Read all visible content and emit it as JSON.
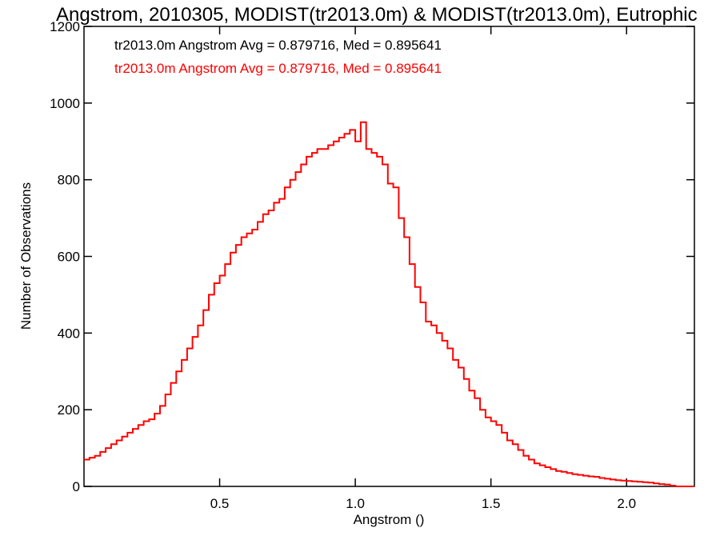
{
  "chart_data": {
    "type": "step",
    "title": "Angstrom, 2010305, MODIST(tr2013.0m) & MODIST(tr2013.0m), Eutrophic",
    "xlabel": "Angstrom ()",
    "ylabel": "Number of Observations",
    "xlim": [
      0.0,
      2.25
    ],
    "ylim": [
      0,
      1200
    ],
    "xticks": [
      "0.5",
      "1.0",
      "1.5",
      "2.0"
    ],
    "yticks": [
      "0",
      "200",
      "400",
      "600",
      "800",
      "1000",
      "1200"
    ],
    "annotations": [
      {
        "text": "tr2013.0m Angstrom Avg = 0.879716, Med = 0.895641",
        "color": "#000000"
      },
      {
        "text": "tr2013.0m Angstrom Avg = 0.879716, Med = 0.895641",
        "color": "#ff0000"
      }
    ],
    "series": [
      {
        "color": "#ff0000",
        "x": [
          0.0,
          0.02,
          0.04,
          0.06,
          0.08,
          0.1,
          0.12,
          0.14,
          0.16,
          0.18,
          0.2,
          0.22,
          0.24,
          0.26,
          0.28,
          0.3,
          0.32,
          0.34,
          0.36,
          0.38,
          0.4,
          0.42,
          0.44,
          0.46,
          0.48,
          0.5,
          0.52,
          0.54,
          0.56,
          0.58,
          0.6,
          0.62,
          0.64,
          0.66,
          0.68,
          0.7,
          0.72,
          0.74,
          0.76,
          0.78,
          0.8,
          0.82,
          0.84,
          0.86,
          0.88,
          0.9,
          0.92,
          0.94,
          0.96,
          0.98,
          1.0,
          1.02,
          1.04,
          1.06,
          1.08,
          1.1,
          1.12,
          1.14,
          1.16,
          1.18,
          1.2,
          1.22,
          1.24,
          1.26,
          1.28,
          1.3,
          1.32,
          1.34,
          1.36,
          1.38,
          1.4,
          1.42,
          1.44,
          1.46,
          1.48,
          1.5,
          1.52,
          1.54,
          1.56,
          1.58,
          1.6,
          1.62,
          1.64,
          1.66,
          1.68,
          1.7,
          1.72,
          1.74,
          1.76,
          1.78,
          1.8,
          1.82,
          1.84,
          1.86,
          1.88,
          1.9,
          1.92,
          1.94,
          1.96,
          1.98,
          2.0,
          2.02,
          2.04,
          2.06,
          2.08,
          2.1,
          2.12,
          2.14,
          2.16,
          2.18,
          2.2,
          2.22,
          2.24
        ],
        "values": [
          70,
          75,
          80,
          90,
          100,
          110,
          120,
          130,
          140,
          150,
          160,
          170,
          175,
          190,
          210,
          240,
          270,
          300,
          330,
          360,
          390,
          420,
          460,
          500,
          530,
          550,
          580,
          610,
          630,
          650,
          660,
          670,
          690,
          710,
          720,
          740,
          750,
          780,
          800,
          820,
          840,
          860,
          870,
          880,
          880,
          890,
          900,
          910,
          920,
          930,
          900,
          950,
          880,
          870,
          860,
          840,
          790,
          780,
          700,
          650,
          580,
          520,
          480,
          430,
          420,
          400,
          380,
          360,
          330,
          310,
          280,
          250,
          230,
          200,
          180,
          170,
          160,
          140,
          120,
          110,
          95,
          80,
          70,
          60,
          55,
          50,
          45,
          40,
          38,
          35,
          32,
          30,
          28,
          26,
          25,
          22,
          20,
          18,
          16,
          15,
          14,
          13,
          12,
          11,
          10,
          8,
          6,
          5,
          2,
          0,
          0,
          0,
          0
        ]
      }
    ]
  }
}
